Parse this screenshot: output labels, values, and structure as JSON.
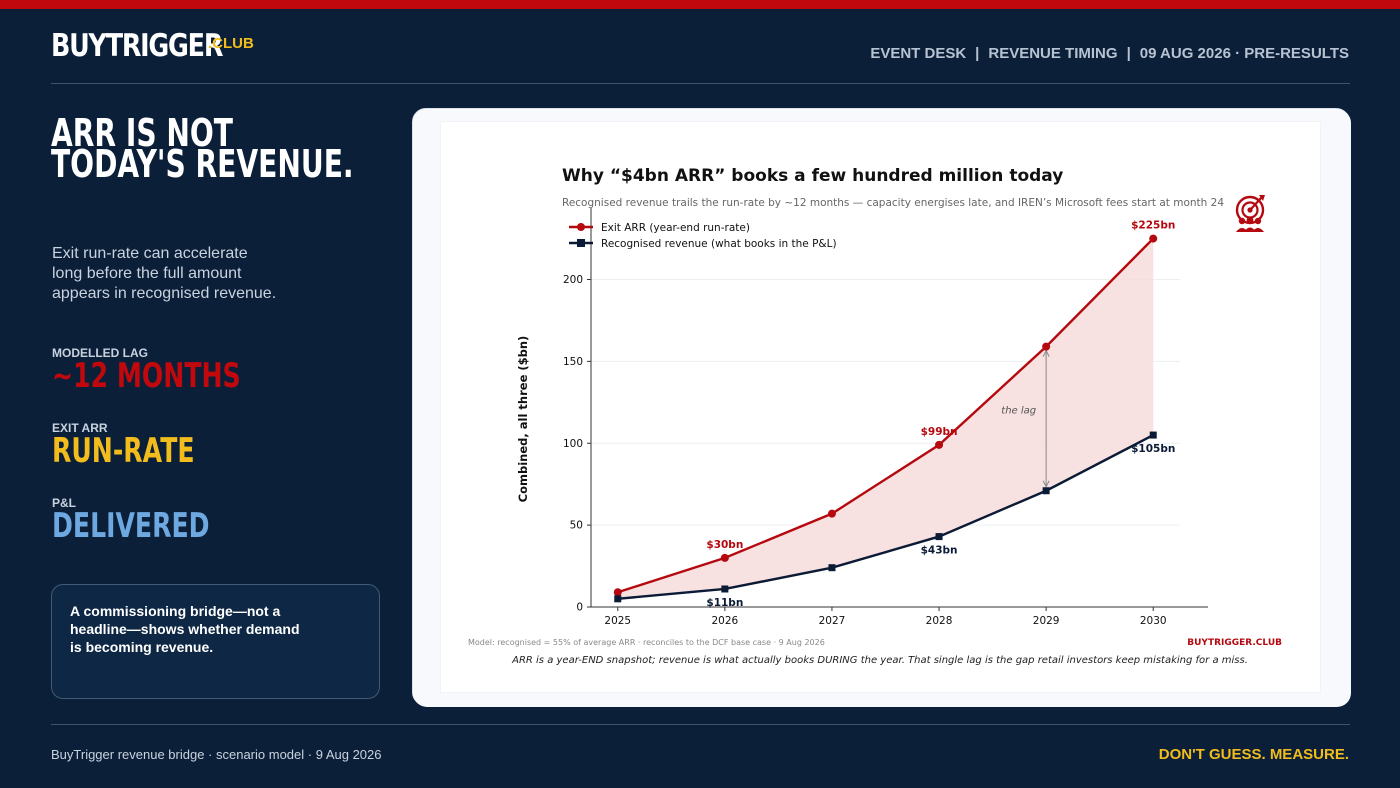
{
  "brand": {
    "name": "BUYTRIGGER",
    "suffix": ".CLUB"
  },
  "header_nav": [
    "EVENT DESK",
    "|",
    "REVENUE TIMING",
    "|",
    "09 AUG 2026 · PRE-RESULTS"
  ],
  "headline": [
    "ARR IS NOT",
    "TODAY'S REVENUE."
  ],
  "lede": "Exit run-rate can accelerate long before the full amount appears in recognised revenue.",
  "stats": [
    {
      "label": "MODELLED LAG",
      "value": "~12 MONTHS",
      "color": "#c1090d"
    },
    {
      "label": "EXIT ARR",
      "value": "RUN-RATE",
      "color": "#f2bd1c"
    },
    {
      "label": "P&L",
      "value": "DELIVERED",
      "color": "#6ea8e0"
    }
  ],
  "note": "A commissioning bridge—not a headline—shows whether demand is becoming revenue.",
  "footer": {
    "left": "BuyTrigger revenue bridge · scenario model · 9 Aug 2026",
    "right": "DON'T GUESS. MEASURE."
  },
  "icons": {
    "chart_badge": "target-group-icon"
  },
  "colors": {
    "arr": "#b5090f",
    "revenue": "#0b1a35",
    "fill": "#f6dcdc",
    "accent": "#f2bd1c"
  },
  "chart_data": {
    "type": "line",
    "title": "Why “$4bn ARR” books a few hundred million today",
    "subtitle": "Recognised revenue trails the run-rate by ~12 months — capacity energises late, and IREN’s Microsoft fees start at month 24",
    "xlabel": "",
    "ylabel": "Combined, all three ($bn)",
    "x": [
      2025,
      2026,
      2027,
      2028,
      2029,
      2030
    ],
    "ylim": [
      0,
      240
    ],
    "yticks": [
      0,
      50,
      100,
      150,
      200
    ],
    "grid": true,
    "legend_position": "top-left",
    "series": [
      {
        "name": "Exit ARR (year-end run-rate)",
        "values": [
          9,
          30,
          57,
          99,
          159,
          225
        ],
        "marker": "circle"
      },
      {
        "name": "Recognised revenue (what books in the P&L)",
        "values": [
          5,
          11,
          24,
          43,
          71,
          105
        ],
        "marker": "square"
      }
    ],
    "data_labels": [
      {
        "series": 0,
        "index": 1,
        "text": "$30bn"
      },
      {
        "series": 0,
        "index": 3,
        "text": "$99bn"
      },
      {
        "series": 0,
        "index": 5,
        "text": "$225bn"
      },
      {
        "series": 1,
        "index": 1,
        "text": "$11bn"
      },
      {
        "series": 1,
        "index": 3,
        "text": "$43bn"
      },
      {
        "series": 1,
        "index": 5,
        "text": "$105bn"
      }
    ],
    "annotation": {
      "text": "the lag",
      "x": 2029
    },
    "footnote": "Model: recognised = 55% of average ARR · reconciles to the DCF base case · 9 Aug 2026",
    "watermark": "BUYTRIGGER.CLUB",
    "caption": "ARR is a year-END snapshot; revenue is what actually books DURING the year. That single lag is the gap retail investors keep mistaking for a miss."
  }
}
